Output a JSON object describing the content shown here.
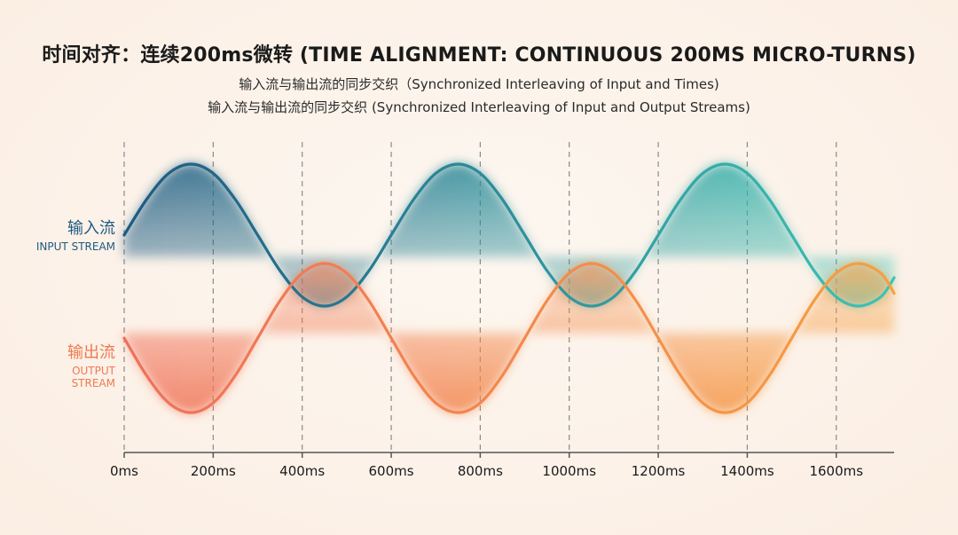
{
  "title": "时间对齐：连续200ms微转 (TIME ALIGNMENT: CONTINUOUS 200MS MICRO-TURNS)",
  "subtitles": [
    "输入流与输出流的同步交织（Synchronized Interleaving of Input and Times)",
    "输入流与输出流的同步交织 (Synchronized Interleaving of Input and Output Streams)"
  ],
  "lanes": {
    "input": {
      "zh": "输入流",
      "en": "INPUT STREAM"
    },
    "output": {
      "zh": "输出流",
      "en": "OUTPUT STREAM"
    }
  },
  "colors": {
    "input_start": "#1e5a82",
    "input_end": "#3cc4b4",
    "output_start": "#f0705a",
    "output_end": "#f6a040",
    "grid": "#8a8a8a",
    "axis": "#555555"
  },
  "chart_data": {
    "type": "line",
    "x_unit": "ms",
    "xlim": [
      0,
      1730
    ],
    "ylim": [
      -1,
      1
    ],
    "grid": "vertical dashed",
    "x_ticks": [
      0,
      200,
      400,
      600,
      800,
      1000,
      1200,
      1400,
      1600
    ],
    "x_tick_labels": [
      "0ms",
      "200ms",
      "400ms",
      "600ms",
      "800ms",
      "1000ms",
      "1200ms",
      "1400ms",
      "1600ms"
    ],
    "series": [
      {
        "name": "INPUT STREAM",
        "x": [
          0,
          50,
          100,
          150,
          200,
          250,
          300,
          350,
          400,
          450,
          500,
          550,
          600,
          650,
          700,
          750,
          800,
          850,
          900,
          950,
          1000,
          1050,
          1100,
          1150,
          1200,
          1250,
          1300,
          1350,
          1400,
          1450,
          1500,
          1550,
          1600,
          1650,
          1700,
          1730
        ],
        "values": [
          0,
          0.5,
          0.87,
          1,
          0.87,
          0.5,
          0,
          -0.5,
          -0.87,
          -1,
          -0.87,
          -0.5,
          0,
          0.5,
          0.87,
          1,
          0.87,
          0.5,
          0,
          -0.5,
          -0.87,
          -1,
          -0.87,
          -0.5,
          0,
          0.5,
          0.87,
          1,
          0.87,
          0.5,
          0,
          -0.5,
          -0.87,
          -1,
          -0.87,
          -0.6
        ]
      },
      {
        "name": "OUTPUT STREAM",
        "x": [
          0,
          50,
          100,
          150,
          200,
          250,
          300,
          350,
          400,
          450,
          500,
          550,
          600,
          650,
          700,
          750,
          800,
          850,
          900,
          950,
          1000,
          1050,
          1100,
          1150,
          1200,
          1250,
          1300,
          1350,
          1400,
          1450,
          1500,
          1550,
          1600,
          1650,
          1700,
          1730
        ],
        "values": [
          0,
          -0.5,
          -0.87,
          -1,
          -0.87,
          -0.5,
          0,
          0.5,
          0.87,
          1,
          0.87,
          0.5,
          0,
          -0.5,
          -0.87,
          -1,
          -0.87,
          -0.5,
          0,
          0.5,
          0.87,
          1,
          0.87,
          0.5,
          0,
          -0.5,
          -0.87,
          -1,
          -0.87,
          -0.5,
          0,
          0.5,
          0.87,
          1,
          0.87,
          0.6
        ]
      }
    ]
  }
}
